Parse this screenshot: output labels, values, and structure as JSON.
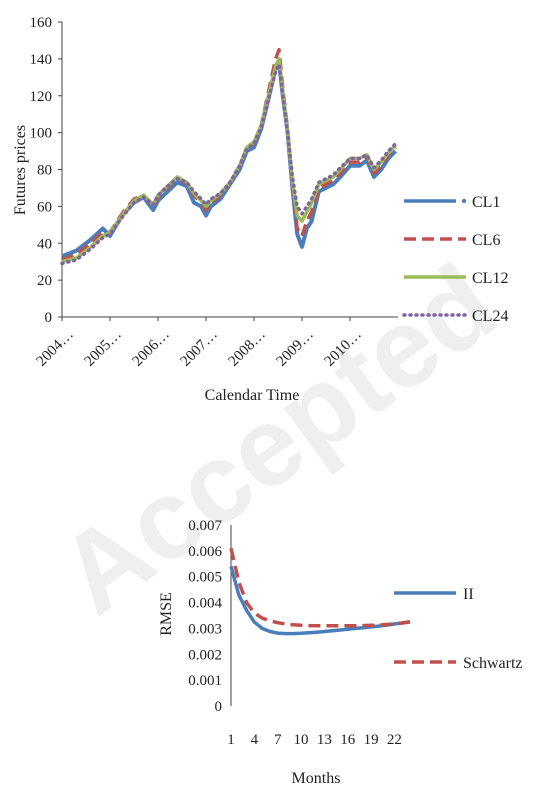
{
  "watermark": "Accepted",
  "chart_data": [
    {
      "type": "line",
      "xlabel": "Calendar Time",
      "ylabel": "Futures prices",
      "ylim": [
        0,
        160
      ],
      "yticks": [
        0,
        20,
        40,
        60,
        80,
        100,
        120,
        140,
        160
      ],
      "categories": [
        "2004…",
        "2005…",
        "2006…",
        "2007…",
        "2008…",
        "2009…",
        "2010…"
      ],
      "x_range": [
        2004.0,
        2011.0
      ],
      "legend_position": "right",
      "grid": false,
      "x": [
        2004.0,
        2004.3,
        2004.6,
        2004.85,
        2005.0,
        2005.25,
        2005.5,
        2005.7,
        2005.9,
        2006.0,
        2006.2,
        2006.4,
        2006.6,
        2006.75,
        2006.9,
        2007.0,
        2007.1,
        2007.3,
        2007.5,
        2007.7,
        2007.85,
        2008.0,
        2008.15,
        2008.3,
        2008.45,
        2008.52,
        2008.6,
        2008.7,
        2008.8,
        2008.9,
        2009.0,
        2009.1,
        2009.2,
        2009.35,
        2009.5,
        2009.65,
        2009.8,
        2010.0,
        2010.2,
        2010.35,
        2010.5,
        2010.65,
        2010.8,
        2010.95
      ],
      "series": [
        {
          "name": "CL1",
          "color": "#4a7ebb",
          "style": "solid-dot",
          "values": [
            33,
            36,
            42,
            48,
            44,
            55,
            62,
            65,
            58,
            63,
            68,
            73,
            71,
            62,
            60,
            55,
            60,
            64,
            72,
            80,
            90,
            92,
            102,
            118,
            135,
            138,
            120,
            100,
            70,
            45,
            38,
            48,
            52,
            68,
            70,
            72,
            76,
            82,
            82,
            85,
            76,
            80,
            86,
            90
          ]
        },
        {
          "name": "CL6",
          "color": "#c0504d",
          "style": "dash",
          "values": [
            31,
            34,
            40,
            46,
            46,
            56,
            64,
            66,
            60,
            65,
            70,
            76,
            72,
            66,
            62,
            58,
            62,
            66,
            73,
            82,
            92,
            94,
            104,
            122,
            140,
            145,
            124,
            102,
            72,
            48,
            44,
            52,
            57,
            70,
            72,
            74,
            78,
            84,
            84,
            87,
            78,
            82,
            88,
            92
          ]
        },
        {
          "name": "CL12",
          "color": "#9bbb59",
          "style": "solid",
          "values": [
            30,
            32,
            38,
            44,
            46,
            55,
            63,
            66,
            61,
            66,
            71,
            76,
            73,
            67,
            63,
            60,
            63,
            67,
            73,
            82,
            92,
            95,
            104,
            120,
            136,
            140,
            122,
            101,
            74,
            55,
            52,
            57,
            62,
            72,
            74,
            76,
            80,
            86,
            86,
            88,
            80,
            84,
            89,
            93
          ]
        },
        {
          "name": "CL24",
          "color": "#8064a2",
          "style": "dot",
          "values": [
            29,
            31,
            37,
            43,
            45,
            54,
            62,
            65,
            61,
            66,
            71,
            75,
            73,
            68,
            64,
            61,
            64,
            67,
            73,
            82,
            91,
            94,
            103,
            118,
            133,
            137,
            120,
            100,
            76,
            60,
            56,
            60,
            64,
            73,
            75,
            77,
            81,
            86,
            86,
            88,
            81,
            85,
            90,
            94
          ]
        }
      ]
    },
    {
      "type": "line",
      "xlabel": "Months",
      "ylabel": "RMSE",
      "ylim": [
        0,
        0.007
      ],
      "yticks": [
        "0",
        "0.001",
        "0.002",
        "0.003",
        "0.004",
        "0.005",
        "0.006",
        "0.007"
      ],
      "xticks": [
        "1",
        "4",
        "7",
        "10",
        "13",
        "16",
        "19",
        "22"
      ],
      "x_range": [
        1,
        24
      ],
      "legend_position": "right",
      "grid": false,
      "x": [
        1,
        2,
        3,
        4,
        5,
        6,
        7,
        8,
        9,
        10,
        11,
        12,
        13,
        14,
        15,
        16,
        17,
        18,
        19,
        20,
        21,
        22,
        23,
        24
      ],
      "series": [
        {
          "name": "II",
          "color": "#4a7ebb",
          "style": "solid",
          "values": [
            0.0054,
            0.0043,
            0.0037,
            0.00325,
            0.003,
            0.00288,
            0.00282,
            0.0028,
            0.0028,
            0.00281,
            0.00283,
            0.00285,
            0.00288,
            0.00291,
            0.00294,
            0.00297,
            0.003,
            0.00303,
            0.00306,
            0.00309,
            0.00313,
            0.00317,
            0.00321,
            0.00326
          ]
        },
        {
          "name": "Schwartz",
          "color": "#c0504d",
          "style": "dash",
          "values": [
            0.0061,
            0.0048,
            0.004,
            0.0036,
            0.0034,
            0.0033,
            0.00322,
            0.00317,
            0.00314,
            0.00312,
            0.00311,
            0.0031,
            0.0031,
            0.0031,
            0.0031,
            0.0031,
            0.0031,
            0.00311,
            0.00312,
            0.00313,
            0.00315,
            0.00318,
            0.00321,
            0.00325
          ]
        }
      ]
    }
  ]
}
